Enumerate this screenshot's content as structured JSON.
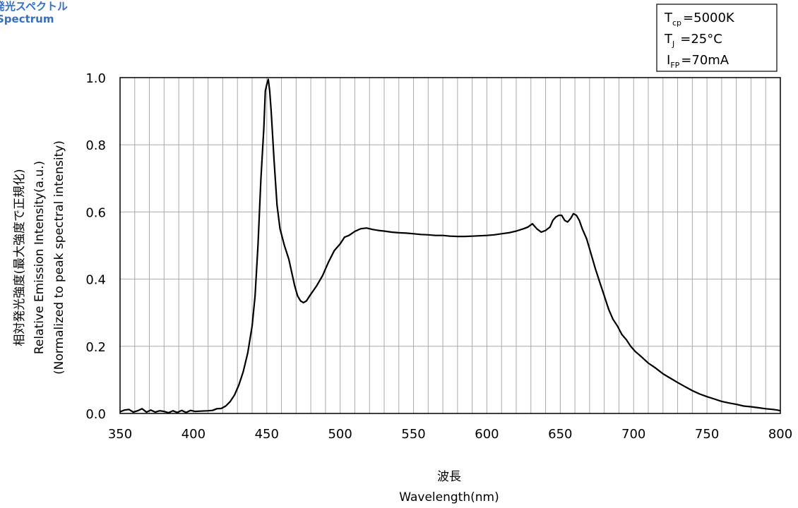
{
  "header": {
    "title_ja": "発光スペクトル",
    "title_en": "Spectrum"
  },
  "conditions": [
    {
      "symbol": "T",
      "sub": "cp",
      "value": "=5000K"
    },
    {
      "symbol": "T",
      "sub": "J",
      "value": "=25°C"
    },
    {
      "symbol": "I",
      "sub": "FP",
      "value": "=70mA"
    }
  ],
  "chart_data": {
    "type": "line",
    "title": "",
    "xlabel_ja": "波長",
    "xlabel": "Wavelength(nm)",
    "ylabel_lines": [
      "相対発光強度(最大強度で正規化)",
      "Relative Emission Intensity(a.u.)",
      "(Normalized to peak spectral intensity)"
    ],
    "xlim": [
      350,
      800
    ],
    "ylim": [
      0,
      1.0
    ],
    "x_ticks": [
      350,
      400,
      450,
      500,
      550,
      600,
      650,
      700,
      750,
      800
    ],
    "y_ticks": [
      "0.0",
      "0.2",
      "0.4",
      "0.6",
      "0.8",
      "1.0"
    ],
    "grid": "vertical every 10 nm, horizontal every 0.2",
    "series": [
      {
        "color": "#000000",
        "points": [
          [
            350,
            0.005
          ],
          [
            353,
            0.01
          ],
          [
            356,
            0.012
          ],
          [
            359,
            0.004
          ],
          [
            362,
            0.008
          ],
          [
            365,
            0.014
          ],
          [
            368,
            0.004
          ],
          [
            371,
            0.01
          ],
          [
            374,
            0.004
          ],
          [
            377,
            0.008
          ],
          [
            380,
            0.006
          ],
          [
            383,
            0.002
          ],
          [
            386,
            0.008
          ],
          [
            389,
            0.003
          ],
          [
            392,
            0.009
          ],
          [
            395,
            0.003
          ],
          [
            398,
            0.009
          ],
          [
            401,
            0.006
          ],
          [
            405,
            0.007
          ],
          [
            410,
            0.008
          ],
          [
            413,
            0.009
          ],
          [
            416,
            0.014
          ],
          [
            419,
            0.015
          ],
          [
            422,
            0.022
          ],
          [
            425,
            0.035
          ],
          [
            428,
            0.055
          ],
          [
            431,
            0.085
          ],
          [
            434,
            0.125
          ],
          [
            437,
            0.18
          ],
          [
            440,
            0.26
          ],
          [
            442,
            0.35
          ],
          [
            444,
            0.5
          ],
          [
            446,
            0.7
          ],
          [
            448,
            0.85
          ],
          [
            449,
            0.96
          ],
          [
            450,
            0.98
          ],
          [
            451,
            0.995
          ],
          [
            452,
            0.96
          ],
          [
            453,
            0.9
          ],
          [
            455,
            0.75
          ],
          [
            457,
            0.62
          ],
          [
            459,
            0.55
          ],
          [
            462,
            0.5
          ],
          [
            465,
            0.46
          ],
          [
            467,
            0.42
          ],
          [
            469,
            0.38
          ],
          [
            471,
            0.35
          ],
          [
            473,
            0.335
          ],
          [
            475,
            0.33
          ],
          [
            477,
            0.335
          ],
          [
            480,
            0.355
          ],
          [
            484,
            0.38
          ],
          [
            488,
            0.41
          ],
          [
            492,
            0.45
          ],
          [
            496,
            0.485
          ],
          [
            500,
            0.505
          ],
          [
            503,
            0.525
          ],
          [
            506,
            0.53
          ],
          [
            510,
            0.542
          ],
          [
            514,
            0.55
          ],
          [
            518,
            0.552
          ],
          [
            522,
            0.548
          ],
          [
            526,
            0.545
          ],
          [
            530,
            0.543
          ],
          [
            535,
            0.54
          ],
          [
            540,
            0.538
          ],
          [
            545,
            0.537
          ],
          [
            550,
            0.535
          ],
          [
            555,
            0.533
          ],
          [
            560,
            0.532
          ],
          [
            565,
            0.53
          ],
          [
            570,
            0.53
          ],
          [
            575,
            0.528
          ],
          [
            580,
            0.527
          ],
          [
            585,
            0.527
          ],
          [
            590,
            0.528
          ],
          [
            595,
            0.529
          ],
          [
            600,
            0.53
          ],
          [
            605,
            0.532
          ],
          [
            610,
            0.535
          ],
          [
            615,
            0.538
          ],
          [
            620,
            0.543
          ],
          [
            625,
            0.55
          ],
          [
            628,
            0.555
          ],
          [
            631,
            0.565
          ],
          [
            634,
            0.55
          ],
          [
            637,
            0.54
          ],
          [
            640,
            0.545
          ],
          [
            643,
            0.555
          ],
          [
            645,
            0.575
          ],
          [
            647,
            0.585
          ],
          [
            649,
            0.59
          ],
          [
            651,
            0.59
          ],
          [
            653,
            0.575
          ],
          [
            655,
            0.57
          ],
          [
            657,
            0.58
          ],
          [
            659,
            0.595
          ],
          [
            661,
            0.59
          ],
          [
            663,
            0.575
          ],
          [
            665,
            0.55
          ],
          [
            668,
            0.52
          ],
          [
            671,
            0.475
          ],
          [
            674,
            0.43
          ],
          [
            677,
            0.39
          ],
          [
            680,
            0.35
          ],
          [
            683,
            0.31
          ],
          [
            686,
            0.28
          ],
          [
            689,
            0.26
          ],
          [
            692,
            0.235
          ],
          [
            695,
            0.22
          ],
          [
            698,
            0.2
          ],
          [
            701,
            0.185
          ],
          [
            705,
            0.17
          ],
          [
            710,
            0.15
          ],
          [
            715,
            0.135
          ],
          [
            720,
            0.118
          ],
          [
            725,
            0.105
          ],
          [
            730,
            0.092
          ],
          [
            735,
            0.08
          ],
          [
            740,
            0.068
          ],
          [
            745,
            0.058
          ],
          [
            750,
            0.05
          ],
          [
            755,
            0.043
          ],
          [
            760,
            0.036
          ],
          [
            765,
            0.031
          ],
          [
            770,
            0.027
          ],
          [
            775,
            0.022
          ],
          [
            780,
            0.02
          ],
          [
            785,
            0.017
          ],
          [
            790,
            0.014
          ],
          [
            795,
            0.012
          ],
          [
            798,
            0.01
          ],
          [
            800,
            0.008
          ]
        ]
      }
    ]
  }
}
